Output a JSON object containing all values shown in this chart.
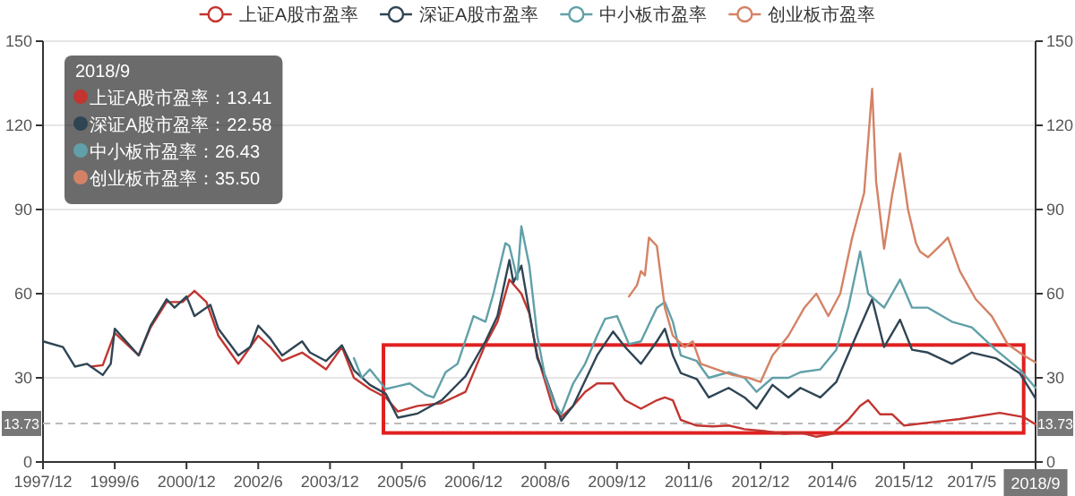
{
  "chart_data": {
    "type": "line",
    "xlim": [
      "1997-12",
      "2018-09"
    ],
    "ylim": [
      0,
      150
    ],
    "yticks": [
      0,
      30,
      60,
      90,
      120,
      150
    ],
    "y2lim": [
      0,
      150
    ],
    "y2ticks": [
      0,
      30,
      60,
      90,
      120,
      150
    ],
    "xticks": [
      {
        "value": "1997-12",
        "label": "1997/12"
      },
      {
        "value": "1999-06",
        "label": "1999/6"
      },
      {
        "value": "2000-12",
        "label": "2000/12"
      },
      {
        "value": "2002-06",
        "label": "2002/6"
      },
      {
        "value": "2003-12",
        "label": "2003/12"
      },
      {
        "value": "2005-06",
        "label": "2005/6"
      },
      {
        "value": "2006-12",
        "label": "2006/12"
      },
      {
        "value": "2008-06",
        "label": "2008/6"
      },
      {
        "value": "2009-12",
        "label": "2009/12"
      },
      {
        "value": "2011-06",
        "label": "2011/6"
      },
      {
        "value": "2012-12",
        "label": "2012/12"
      },
      {
        "value": "2014-06",
        "label": "2014/6"
      },
      {
        "value": "2015-12",
        "label": "2015/12"
      },
      {
        "value": "2017-05",
        "label": "2017/5"
      },
      {
        "value": "2018-09",
        "label": "2018/9"
      }
    ],
    "grid": "y",
    "legend": "top",
    "series": [
      {
        "name": "上证A股市盈率",
        "color": "#c23531",
        "x": [
          "1998-12",
          "1999-03",
          "1999-06",
          "1999-12",
          "2000-03",
          "2000-07",
          "2000-11",
          "2001-02",
          "2001-05",
          "2001-08",
          "2002-01",
          "2002-06",
          "2002-09",
          "2002-12",
          "2003-05",
          "2003-11",
          "2004-03",
          "2004-06",
          "2004-10",
          "2005-02",
          "2005-05",
          "2005-10",
          "2006-04",
          "2006-10",
          "2007-03",
          "2007-06",
          "2007-09",
          "2007-12",
          "2008-02",
          "2008-04",
          "2008-08",
          "2008-10",
          "2009-01",
          "2009-04",
          "2009-07",
          "2009-11",
          "2010-02",
          "2010-06",
          "2010-10",
          "2010-12",
          "2011-02",
          "2011-04",
          "2011-08",
          "2011-12",
          "2012-04",
          "2012-08",
          "2013-01",
          "2013-06",
          "2013-10",
          "2014-02",
          "2014-06",
          "2014-10",
          "2015-01",
          "2015-03",
          "2015-06",
          "2015-09",
          "2015-12",
          "2016-06",
          "2017-02",
          "2017-12",
          "2018-06",
          "2018-09"
        ],
        "values": [
          34,
          34.5,
          46,
          38,
          48,
          57,
          57,
          61,
          57,
          45,
          35,
          45,
          41,
          36,
          39,
          33,
          41,
          30,
          26,
          23,
          18,
          20,
          21,
          25,
          42,
          50,
          65,
          60,
          53,
          38,
          19,
          16,
          20,
          25,
          28,
          28,
          22,
          19,
          22,
          23,
          22,
          15,
          13,
          12.7,
          13,
          11.7,
          11,
          10,
          10.5,
          9,
          10,
          15,
          20,
          22,
          17,
          17,
          13,
          14,
          15.3,
          17.5,
          16,
          13.41
        ]
      },
      {
        "name": "深证A股市盈率",
        "color": "#2f4554",
        "x": [
          "1997-12",
          "1998-05",
          "1998-08",
          "1998-11",
          "1999-03",
          "1999-05",
          "1999-06",
          "1999-12",
          "2000-03",
          "2000-07",
          "2000-09",
          "2000-12",
          "2001-02",
          "2001-06",
          "2001-08",
          "2002-01",
          "2002-04",
          "2002-06",
          "2002-09",
          "2002-12",
          "2003-03",
          "2003-05",
          "2003-07",
          "2003-11",
          "2004-03",
          "2004-06",
          "2004-10",
          "2005-02",
          "2005-05",
          "2005-10",
          "2006-04",
          "2006-10",
          "2007-03",
          "2007-06",
          "2007-09",
          "2007-10",
          "2007-12",
          "2008-04",
          "2008-06",
          "2008-10",
          "2009-01",
          "2009-07",
          "2009-11",
          "2010-02",
          "2010-06",
          "2010-10",
          "2010-12",
          "2011-02",
          "2011-04",
          "2011-08",
          "2011-11",
          "2012-04",
          "2012-08",
          "2012-11",
          "2013-03",
          "2013-07",
          "2013-10",
          "2014-03",
          "2014-07",
          "2014-12",
          "2015-04",
          "2015-07",
          "2015-11",
          "2016-02",
          "2016-06",
          "2016-12",
          "2017-05",
          "2017-11",
          "2018-05",
          "2018-09"
        ],
        "values": [
          43,
          41,
          34,
          35,
          31,
          35,
          47.5,
          38,
          48.6,
          58,
          55,
          59,
          52,
          56,
          47.5,
          38,
          41,
          48.6,
          44,
          38,
          41,
          43,
          39,
          36,
          41.6,
          32.7,
          27.5,
          24.3,
          15.8,
          17.3,
          22,
          30.6,
          43,
          52,
          72,
          64,
          70,
          37,
          30.6,
          14.7,
          20,
          38,
          46.5,
          41,
          35,
          43,
          47.5,
          38,
          31.7,
          29.6,
          23,
          26.4,
          23,
          19,
          27.5,
          23,
          26.4,
          23,
          28.5,
          45,
          58,
          41,
          50.7,
          40,
          39,
          35,
          39,
          37,
          31.7,
          22.58
        ]
      },
      {
        "name": "中小板市盈率",
        "color": "#61a0a8",
        "x": [
          "2004-06",
          "2004-08",
          "2004-10",
          "2005-02",
          "2005-05",
          "2005-08",
          "2005-12",
          "2006-02",
          "2006-05",
          "2006-08",
          "2006-12",
          "2007-03",
          "2007-05",
          "2007-08",
          "2007-09",
          "2007-11",
          "2007-12",
          "2008-02",
          "2008-04",
          "2008-06",
          "2008-08",
          "2008-10",
          "2009-01",
          "2009-04",
          "2009-07",
          "2009-09",
          "2009-12",
          "2010-03",
          "2010-06",
          "2010-10",
          "2010-12",
          "2011-02",
          "2011-04",
          "2011-08",
          "2011-11",
          "2012-04",
          "2012-08",
          "2012-11",
          "2013-03",
          "2013-07",
          "2013-10",
          "2014-03",
          "2014-07",
          "2014-10",
          "2015-01",
          "2015-03",
          "2015-07",
          "2015-09",
          "2015-11",
          "2016-02",
          "2016-06",
          "2016-12",
          "2017-05",
          "2017-11",
          "2018-05",
          "2018-09"
        ],
        "values": [
          37,
          30,
          33,
          26,
          27,
          28,
          24,
          23,
          32,
          35,
          52,
          50,
          60,
          78,
          77,
          65,
          84,
          70,
          45,
          30,
          22,
          17,
          28,
          35,
          45,
          51,
          52,
          42,
          43,
          55,
          57,
          50,
          38,
          36,
          30,
          32,
          30,
          25,
          30,
          30,
          32,
          33,
          40,
          55,
          75,
          60,
          55,
          60,
          65,
          55,
          55,
          50,
          48,
          40,
          33,
          26.43
        ]
      },
      {
        "name": "创业板市盈率",
        "color": "#d48265",
        "x": [
          "2010-03",
          "2010-05",
          "2010-06",
          "2010-07",
          "2010-08",
          "2010-10",
          "2010-12",
          "2011-02",
          "2011-05",
          "2011-07",
          "2011-09",
          "2012-01",
          "2012-05",
          "2012-09",
          "2012-12",
          "2013-03",
          "2013-07",
          "2013-11",
          "2014-02",
          "2014-05",
          "2014-08",
          "2014-11",
          "2015-02",
          "2015-04",
          "2015-05",
          "2015-07",
          "2015-09",
          "2015-11",
          "2016-01",
          "2016-03",
          "2016-04",
          "2016-06",
          "2016-09",
          "2016-11",
          "2017-02",
          "2017-06",
          "2017-10",
          "2018-02",
          "2018-06",
          "2018-09"
        ],
        "values": [
          59,
          63,
          68,
          66.5,
          80,
          77,
          55,
          45,
          41,
          43,
          35,
          33,
          31,
          30,
          28.5,
          38,
          45,
          55,
          60,
          52,
          60,
          80,
          96,
          133,
          100,
          76,
          95,
          110,
          90,
          78,
          75,
          73,
          77,
          80,
          68,
          58,
          52,
          42,
          38,
          35.5
        ]
      }
    ],
    "ref_lines": [
      {
        "axis": "y",
        "value": 13.73,
        "label": "13.73",
        "line_style": "dashed",
        "color": "#bbbbbb"
      }
    ],
    "annotations": [
      "2018/9",
      "上证A股市盈率：13.41",
      "深证A股市盈率：22.58",
      "中小板市盈率：26.43",
      "创业板市盈率：35.50"
    ]
  }
}
